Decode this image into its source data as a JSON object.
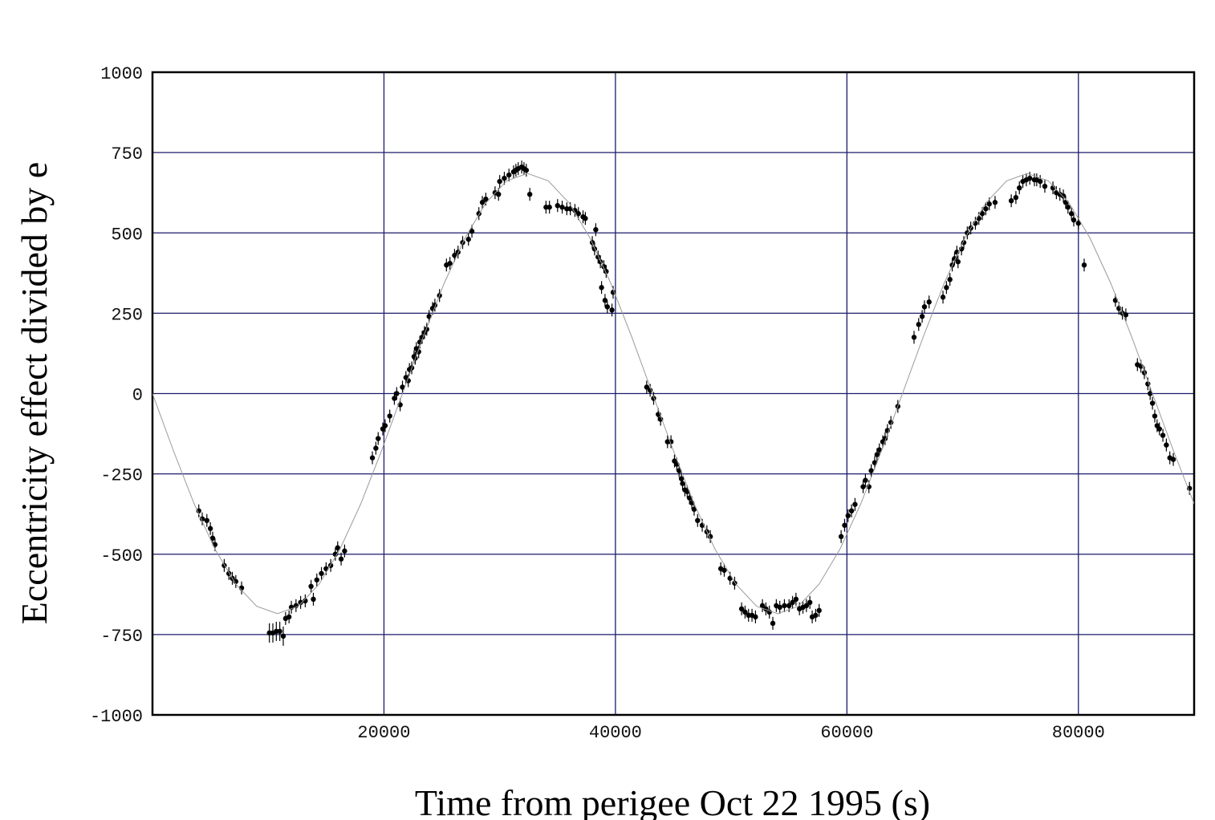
{
  "chart_data": {
    "type": "scatter",
    "xlabel": "Time from perigee Oct 22 1995 (s)",
    "ylabel": "Eccentricity effect divided by e",
    "xlim": [
      0,
      90000
    ],
    "ylim": [
      -1000,
      1000
    ],
    "xticks": [
      20000,
      40000,
      60000,
      80000
    ],
    "yticks": [
      -1000,
      -750,
      -500,
      -250,
      0,
      250,
      500,
      750,
      1000
    ],
    "grid": true,
    "grid_color": "#1c1c6b",
    "series": [
      {
        "type": "scatter",
        "color": "#000000",
        "x": [
          4000,
          4300,
          4700,
          5000,
          5200,
          5400,
          6200,
          6600,
          6900,
          7200,
          7700,
          10100,
          10400,
          10700,
          11000,
          11300,
          11500,
          11800,
          12000,
          12400,
          12800,
          13200,
          13700,
          13900,
          14200,
          14600,
          15000,
          15400,
          15800,
          16000,
          16300,
          16600,
          19000,
          19300,
          19500,
          19900,
          20100,
          20500,
          20900,
          21100,
          21400,
          21600,
          21900,
          22100,
          22200,
          22400,
          22600,
          22700,
          22800,
          23000,
          23100,
          23300,
          23500,
          23700,
          23900,
          24200,
          24400,
          24800,
          25400,
          25700,
          26100,
          26400,
          26800,
          27300,
          27600,
          28200,
          28500,
          28800,
          29600,
          29900,
          30000,
          30400,
          30800,
          31200,
          31400,
          31600,
          31900,
          32100,
          32300,
          32600,
          34000,
          34300,
          35000,
          35400,
          35800,
          36100,
          36500,
          36800,
          37200,
          37400,
          38000,
          38200,
          38300,
          38500,
          38700,
          38800,
          39000,
          39100,
          39200,
          39300,
          39700,
          39800,
          42700,
          43000,
          43300,
          43700,
          43900,
          44500,
          44800,
          45100,
          45300,
          45500,
          45700,
          45800,
          46000,
          46200,
          46400,
          46600,
          46800,
          47100,
          47500,
          47900,
          48200,
          49100,
          49400,
          49900,
          50300,
          50900,
          51200,
          51500,
          51800,
          52100,
          52700,
          53000,
          53300,
          53600,
          53900,
          54200,
          54600,
          55000,
          55300,
          55600,
          55900,
          56200,
          56500,
          56800,
          57000,
          57300,
          57600,
          59500,
          59800,
          60100,
          60400,
          60700,
          61400,
          61600,
          61900,
          62100,
          62400,
          62600,
          62800,
          63100,
          63300,
          63500,
          63800,
          64400,
          65800,
          66200,
          66500,
          66700,
          67100,
          68300,
          68600,
          68900,
          69100,
          69300,
          69500,
          69600,
          69900,
          70100,
          70400,
          70700,
          71100,
          71400,
          71700,
          72000,
          72300,
          72800,
          74200,
          74600,
          74900,
          75200,
          75500,
          75800,
          76200,
          76400,
          76700,
          77100,
          77800,
          78100,
          78400,
          78700,
          78900,
          79100,
          79400,
          79600,
          80000,
          80500,
          83200,
          83500,
          83800,
          84100,
          85100,
          85400,
          85700,
          86000,
          86200,
          86400,
          86600,
          86800,
          87000,
          87300,
          87600,
          87900,
          88200,
          89600
        ],
        "values": [
          -365,
          -390,
          -395,
          -420,
          -450,
          -470,
          -535,
          -560,
          -575,
          -585,
          -605,
          -745,
          -745,
          -740,
          -740,
          -755,
          -700,
          -695,
          -665,
          -660,
          -650,
          -645,
          -600,
          -640,
          -580,
          -560,
          -545,
          -535,
          -500,
          -480,
          -515,
          -490,
          -200,
          -170,
          -140,
          -110,
          -100,
          -70,
          -15,
          0,
          -35,
          20,
          50,
          40,
          75,
          80,
          115,
          110,
          140,
          130,
          160,
          175,
          190,
          200,
          240,
          265,
          275,
          305,
          400,
          405,
          430,
          440,
          470,
          480,
          505,
          560,
          595,
          605,
          625,
          620,
          660,
          670,
          680,
          690,
          695,
          700,
          705,
          700,
          695,
          620,
          580,
          580,
          585,
          580,
          575,
          575,
          570,
          560,
          550,
          545,
          470,
          450,
          510,
          425,
          410,
          330,
          395,
          290,
          380,
          270,
          260,
          315,
          20,
          10,
          -15,
          -65,
          -80,
          -150,
          -150,
          -210,
          -220,
          -240,
          -265,
          -280,
          -300,
          -305,
          -325,
          -340,
          -360,
          -395,
          -410,
          -430,
          -445,
          -545,
          -550,
          -575,
          -590,
          -670,
          -680,
          -690,
          -690,
          -695,
          -660,
          -670,
          -680,
          -715,
          -660,
          -665,
          -660,
          -660,
          -650,
          -640,
          -670,
          -665,
          -660,
          -650,
          -695,
          -690,
          -675,
          -445,
          -410,
          -380,
          -365,
          -345,
          -290,
          -270,
          -290,
          -240,
          -215,
          -190,
          -175,
          -150,
          -140,
          -115,
          -90,
          -40,
          175,
          215,
          240,
          270,
          285,
          300,
          330,
          355,
          400,
          420,
          440,
          410,
          450,
          470,
          500,
          515,
          530,
          545,
          560,
          575,
          590,
          595,
          600,
          610,
          640,
          660,
          665,
          670,
          665,
          665,
          660,
          645,
          640,
          625,
          620,
          615,
          595,
          580,
          560,
          540,
          530,
          400,
          290,
          265,
          250,
          245,
          90,
          85,
          65,
          30,
          0,
          -30,
          -70,
          -100,
          -110,
          -130,
          -160,
          -200,
          -205,
          -295
        ],
        "errors": [
          20,
          20,
          20,
          20,
          20,
          20,
          20,
          20,
          20,
          20,
          20,
          30,
          30,
          30,
          30,
          30,
          20,
          20,
          20,
          20,
          20,
          20,
          20,
          20,
          20,
          20,
          20,
          20,
          20,
          20,
          20,
          20,
          20,
          20,
          20,
          20,
          20,
          20,
          20,
          20,
          20,
          20,
          20,
          20,
          20,
          20,
          20,
          20,
          20,
          20,
          20,
          20,
          20,
          20,
          20,
          20,
          20,
          20,
          20,
          20,
          20,
          20,
          20,
          20,
          20,
          20,
          20,
          20,
          20,
          20,
          20,
          20,
          20,
          20,
          20,
          20,
          20,
          20,
          20,
          20,
          20,
          20,
          20,
          20,
          20,
          20,
          20,
          20,
          20,
          20,
          20,
          20,
          20,
          20,
          20,
          20,
          20,
          20,
          20,
          20,
          20,
          20,
          20,
          20,
          20,
          20,
          20,
          20,
          20,
          20,
          20,
          20,
          20,
          20,
          20,
          20,
          20,
          20,
          20,
          20,
          20,
          20,
          20,
          20,
          20,
          20,
          20,
          20,
          20,
          20,
          20,
          20,
          20,
          20,
          20,
          20,
          20,
          20,
          20,
          20,
          20,
          20,
          20,
          20,
          20,
          20,
          20,
          20,
          20,
          20,
          20,
          20,
          20,
          20,
          20,
          20,
          20,
          20,
          20,
          20,
          20,
          20,
          20,
          20,
          20,
          20,
          20,
          20,
          20,
          20,
          20,
          20,
          20,
          20,
          20,
          20,
          20,
          20,
          20,
          20,
          20,
          20,
          20,
          20,
          20,
          20,
          20,
          20,
          20,
          20,
          20,
          20,
          20,
          20,
          20,
          20,
          20,
          20,
          20,
          20,
          20,
          20,
          20,
          20,
          20,
          20,
          20,
          20,
          20,
          20,
          20,
          20,
          20,
          20,
          20,
          20,
          20,
          20,
          20,
          20,
          20,
          20,
          20,
          20,
          20,
          20
        ]
      },
      {
        "type": "line",
        "color": "#9a9a9a",
        "x": [
          0,
          1800,
          3600,
          5400,
          7200,
          9000,
          10800,
          12600,
          14400,
          16200,
          18000,
          19800,
          21600,
          23400,
          25200,
          27000,
          28800,
          30600,
          32400,
          34200,
          36000,
          37800,
          39600,
          41400,
          43200,
          45000,
          46800,
          48600,
          50400,
          52200,
          54000,
          55800,
          57600,
          59400,
          61200,
          63000,
          64800,
          66600,
          68400,
          70200,
          72000,
          73800,
          75600,
          77400,
          79200,
          81000,
          82800,
          84600,
          86400,
          88200,
          90000
        ],
        "values": [
          0,
          -177,
          -343,
          -484,
          -593,
          -662,
          -685,
          -662,
          -593,
          -484,
          -343,
          -177,
          0,
          177,
          343,
          484,
          593,
          662,
          685,
          662,
          593,
          484,
          343,
          177,
          0,
          -177,
          -343,
          -484,
          -593,
          -662,
          -685,
          -662,
          -593,
          -484,
          -343,
          -177,
          0,
          177,
          343,
          484,
          593,
          662,
          685,
          662,
          593,
          484,
          343,
          177,
          0,
          -177,
          -343
        ]
      }
    ]
  }
}
